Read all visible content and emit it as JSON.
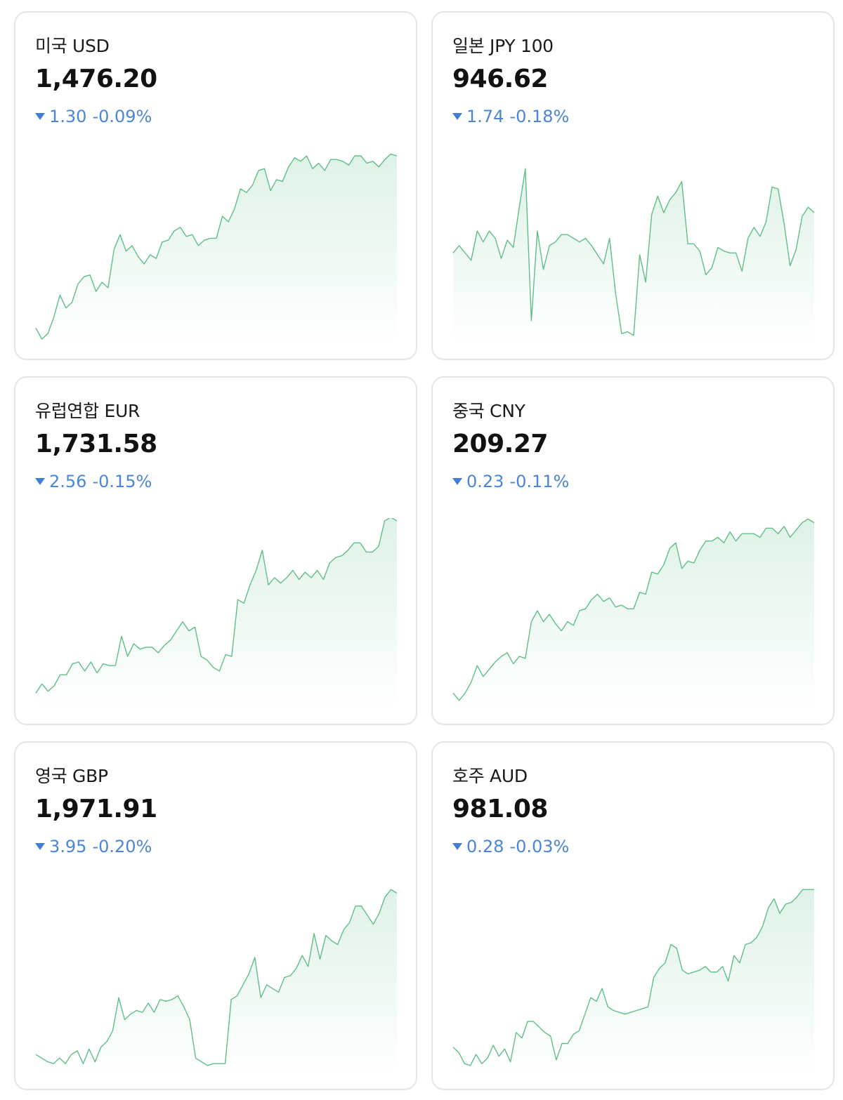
{
  "colors": {
    "line": "#5fbf87",
    "fill_top": "#5fbf87",
    "down": "#4a86d8"
  },
  "cards": [
    {
      "name": "미국 USD",
      "rate": "1,476.20",
      "change": "1.30",
      "pct": "-0.09%"
    },
    {
      "name": "일본 JPY 100",
      "rate": "946.62",
      "change": "1.74",
      "pct": "-0.18%"
    },
    {
      "name": "유럽연합 EUR",
      "rate": "1,731.58",
      "change": "2.56",
      "pct": "-0.15%"
    },
    {
      "name": "중국 CNY",
      "rate": "209.27",
      "change": "0.23",
      "pct": "-0.11%"
    },
    {
      "name": "영국 GBP",
      "rate": "1,971.91",
      "change": "3.95",
      "pct": "-0.20%"
    },
    {
      "name": "호주 AUD",
      "rate": "981.08",
      "change": "0.28",
      "pct": "-0.03%"
    }
  ],
  "chart_data": [
    {
      "type": "area",
      "series": [
        {
          "values": [
            0.06,
            0,
            0.03,
            0.12,
            0.24,
            0.17,
            0.2,
            0.3,
            0.34,
            0.35,
            0.26,
            0.31,
            0.28,
            0.49,
            0.57,
            0.48,
            0.51,
            0.45,
            0.41,
            0.46,
            0.44,
            0.53,
            0.54,
            0.59,
            0.61,
            0.56,
            0.57,
            0.51,
            0.54,
            0.55,
            0.55,
            0.67,
            0.64,
            0.71,
            0.82,
            0.8,
            0.84,
            0.92,
            0.93,
            0.81,
            0.87,
            0.86,
            0.94,
            0.99,
            0.97,
            1.0,
            0.93,
            0.96,
            0.92,
            0.98,
            0.98,
            0.97,
            0.95,
            1.0,
            1.0,
            0.96,
            0.97,
            0.94,
            0.98,
            1.01,
            1.0
          ]
        }
      ]
    },
    {
      "type": "area",
      "series": [
        {
          "values": [
            0.47,
            0.51,
            0.47,
            0.43,
            0.59,
            0.53,
            0.59,
            0.55,
            0.44,
            0.54,
            0.5,
            0.72,
            0.93,
            0.1,
            0.59,
            0.38,
            0.51,
            0.53,
            0.57,
            0.57,
            0.55,
            0.53,
            0.55,
            0.51,
            0.46,
            0.41,
            0.55,
            0.25,
            0.03,
            0.04,
            0.02,
            0.46,
            0.31,
            0.68,
            0.78,
            0.69,
            0.76,
            0.8,
            0.86,
            0.52,
            0.52,
            0.48,
            0.35,
            0.39,
            0.5,
            0.48,
            0.47,
            0.47,
            0.37,
            0.55,
            0.61,
            0.56,
            0.64,
            0.83,
            0.82,
            0.63,
            0.4,
            0.49,
            0.67,
            0.72,
            0.69
          ]
        }
      ]
    },
    {
      "type": "area",
      "series": [
        {
          "values": [
            0.06,
            0.11,
            0.07,
            0.1,
            0.16,
            0.16,
            0.22,
            0.23,
            0.18,
            0.23,
            0.17,
            0.22,
            0.21,
            0.21,
            0.37,
            0.26,
            0.33,
            0.3,
            0.31,
            0.31,
            0.28,
            0.32,
            0.35,
            0.4,
            0.45,
            0.4,
            0.42,
            0.26,
            0.24,
            0.2,
            0.18,
            0.27,
            0.26,
            0.57,
            0.55,
            0.65,
            0.73,
            0.84,
            0.65,
            0.69,
            0.66,
            0.69,
            0.73,
            0.68,
            0.72,
            0.69,
            0.73,
            0.68,
            0.77,
            0.8,
            0.81,
            0.84,
            0.88,
            0.88,
            0.83,
            0.83,
            0.86,
            1.0,
            1.02,
            1.0
          ]
        }
      ]
    },
    {
      "type": "area",
      "series": [
        {
          "values": [
            0.06,
            0.02,
            0.06,
            0.12,
            0.21,
            0.15,
            0.19,
            0.23,
            0.26,
            0.28,
            0.22,
            0.26,
            0.25,
            0.45,
            0.51,
            0.45,
            0.49,
            0.44,
            0.4,
            0.45,
            0.43,
            0.51,
            0.52,
            0.57,
            0.6,
            0.56,
            0.58,
            0.53,
            0.54,
            0.52,
            0.52,
            0.61,
            0.6,
            0.72,
            0.71,
            0.76,
            0.85,
            0.88,
            0.74,
            0.78,
            0.77,
            0.84,
            0.89,
            0.89,
            0.91,
            0.88,
            0.94,
            0.89,
            0.93,
            0.93,
            0.93,
            0.91,
            0.96,
            0.96,
            0.93,
            0.97,
            0.91,
            0.95,
            0.99,
            1.01,
            0.99
          ]
        }
      ]
    },
    {
      "type": "area",
      "series": [
        {
          "values": [
            0.08,
            0.06,
            0.04,
            0.03,
            0.06,
            0.03,
            0.08,
            0.1,
            0.03,
            0.11,
            0.04,
            0.12,
            0.15,
            0.21,
            0.39,
            0.27,
            0.3,
            0.32,
            0.31,
            0.36,
            0.31,
            0.38,
            0.37,
            0.38,
            0.4,
            0.34,
            0.27,
            0.06,
            0.04,
            0.02,
            0.03,
            0.03,
            0.03,
            0.38,
            0.4,
            0.46,
            0.52,
            0.61,
            0.39,
            0.46,
            0.44,
            0.42,
            0.5,
            0.51,
            0.55,
            0.62,
            0.56,
            0.74,
            0.6,
            0.73,
            0.7,
            0.68,
            0.76,
            0.8,
            0.89,
            0.89,
            0.84,
            0.79,
            0.85,
            0.94,
            0.98,
            0.96
          ]
        }
      ]
    },
    {
      "type": "area",
      "series": [
        {
          "values": [
            0.12,
            0.09,
            0.03,
            0.02,
            0.08,
            0.03,
            0.06,
            0.13,
            0.07,
            0.11,
            0.04,
            0.2,
            0.17,
            0.26,
            0.26,
            0.23,
            0.2,
            0.18,
            0.05,
            0.14,
            0.14,
            0.19,
            0.21,
            0.3,
            0.39,
            0.37,
            0.44,
            0.34,
            0.32,
            0.31,
            0.3,
            0.31,
            0.32,
            0.33,
            0.34,
            0.5,
            0.55,
            0.58,
            0.68,
            0.66,
            0.54,
            0.52,
            0.53,
            0.54,
            0.56,
            0.53,
            0.53,
            0.56,
            0.48,
            0.62,
            0.58,
            0.68,
            0.69,
            0.72,
            0.78,
            0.88,
            0.93,
            0.85,
            0.9,
            0.91,
            0.94,
            0.98,
            0.98,
            0.98
          ]
        }
      ]
    }
  ]
}
